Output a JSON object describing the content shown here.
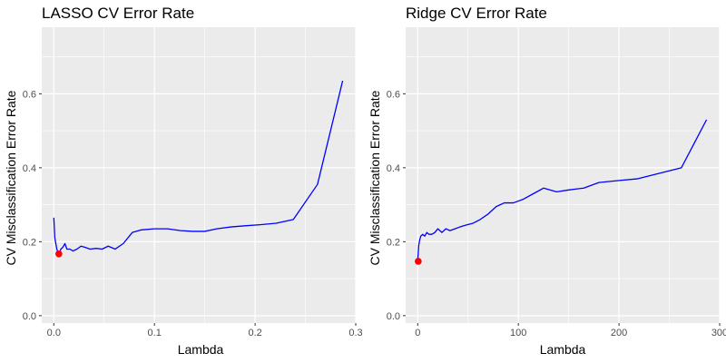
{
  "chart_data": [
    {
      "type": "line",
      "title": "LASSO CV Error Rate",
      "xlabel": "Lambda",
      "ylabel": "CV Misclassification Error Rate",
      "xlim": [
        -0.012,
        0.3
      ],
      "ylim": [
        -0.02,
        0.78
      ],
      "x_ticks": [
        0,
        0.1,
        0.2,
        0.3
      ],
      "x_tick_labels": [
        "0.0",
        "0.1",
        "0.2",
        "0.3"
      ],
      "y_ticks": [
        0.0,
        0.2,
        0.4,
        0.6
      ],
      "y_tick_labels": [
        "0.0",
        "0.2",
        "0.4",
        "0.6"
      ],
      "grid": true,
      "line_color": "#0000ff",
      "point_color": "#ff0000",
      "series": [
        {
          "x": [
            0.0,
            0.001,
            0.003,
            0.005,
            0.007,
            0.009,
            0.011,
            0.013,
            0.016,
            0.019,
            0.023,
            0.027,
            0.031,
            0.036,
            0.042,
            0.048,
            0.054,
            0.061,
            0.069,
            0.078,
            0.087,
            0.1,
            0.113,
            0.126,
            0.138,
            0.15,
            0.162,
            0.176,
            0.19,
            0.205,
            0.221,
            0.238,
            0.262,
            0.287
          ],
          "y": [
            0.265,
            0.21,
            0.18,
            0.165,
            0.18,
            0.185,
            0.195,
            0.18,
            0.18,
            0.175,
            0.18,
            0.188,
            0.185,
            0.18,
            0.182,
            0.18,
            0.188,
            0.18,
            0.195,
            0.225,
            0.232,
            0.235,
            0.235,
            0.23,
            0.228,
            0.228,
            0.235,
            0.24,
            0.243,
            0.246,
            0.25,
            0.26,
            0.355,
            0.635
          ]
        }
      ],
      "highlight_point": {
        "x": 0.005,
        "y": 0.167
      }
    },
    {
      "type": "line",
      "title": "Ridge CV Error Rate",
      "xlabel": "Lambda",
      "ylabel": "CV Misclassification Error Rate",
      "xlim": [
        -12,
        300
      ],
      "ylim": [
        -0.02,
        0.78
      ],
      "x_ticks": [
        0,
        100,
        200,
        300
      ],
      "x_tick_labels": [
        "0",
        "100",
        "200",
        "300"
      ],
      "y_ticks": [
        0.0,
        0.2,
        0.4,
        0.6
      ],
      "y_tick_labels": [
        "0.0",
        "0.2",
        "0.4",
        "0.6"
      ],
      "grid": true,
      "line_color": "#0000ff",
      "point_color": "#ff0000",
      "series": [
        {
          "x": [
            0,
            1,
            2,
            3,
            5,
            7,
            9,
            11,
            14,
            17,
            20,
            24,
            28,
            32,
            37,
            42,
            48,
            55,
            62,
            70,
            78,
            86,
            95,
            105,
            115,
            125,
            138,
            150,
            165,
            180,
            198,
            218,
            240,
            262,
            287
          ],
          "y": [
            0.148,
            0.19,
            0.205,
            0.215,
            0.22,
            0.215,
            0.225,
            0.22,
            0.22,
            0.225,
            0.235,
            0.225,
            0.235,
            0.23,
            0.235,
            0.24,
            0.245,
            0.25,
            0.26,
            0.275,
            0.295,
            0.305,
            0.305,
            0.315,
            0.33,
            0.345,
            0.335,
            0.34,
            0.345,
            0.36,
            0.365,
            0.37,
            0.385,
            0.4,
            0.53
          ]
        }
      ],
      "highlight_point": {
        "x": 0.5,
        "y": 0.147
      }
    }
  ]
}
